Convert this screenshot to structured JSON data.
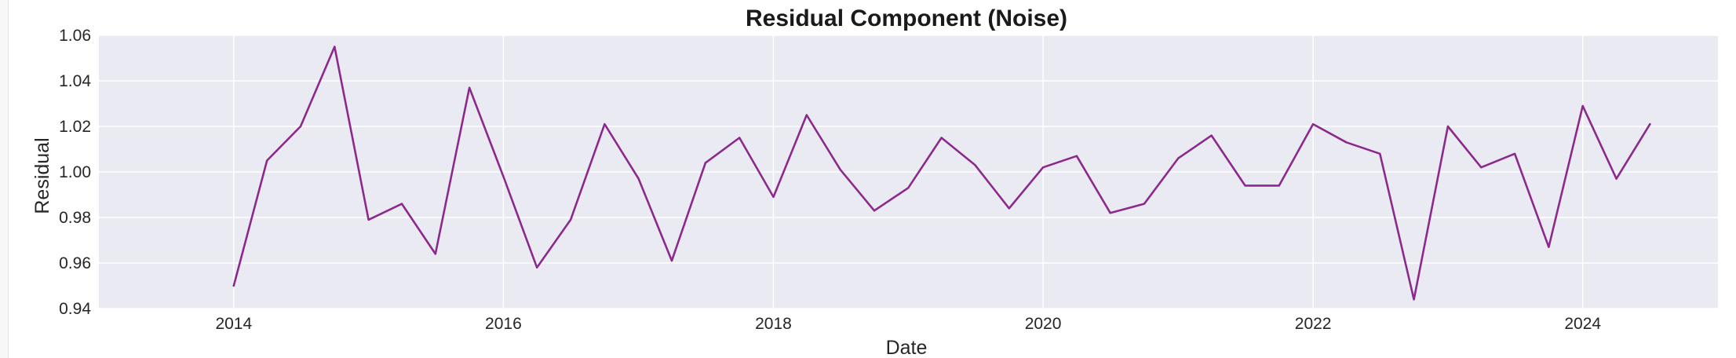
{
  "chart_data": {
    "type": "line",
    "title": "Residual Component (Noise)",
    "xlabel": "Date",
    "ylabel": "Residual",
    "x_axis": "date",
    "xlim": [
      "2013-01-01",
      "2025-01-01"
    ],
    "ylim": [
      0.94,
      1.06
    ],
    "x_ticks": [
      "2014",
      "2016",
      "2018",
      "2020",
      "2022",
      "2024"
    ],
    "y_ticks": [
      "0.94",
      "0.96",
      "0.98",
      "1.00",
      "1.02",
      "1.04",
      "1.06"
    ],
    "grid": true,
    "colors": {
      "line": "#8b2a8c",
      "plot_background": "#eaeaf2",
      "grid": "#ffffff"
    },
    "series": [
      {
        "x": [
          "2014-01-01",
          "2014-04-01",
          "2014-07-01",
          "2014-10-01",
          "2015-01-01",
          "2015-04-01",
          "2015-07-01",
          "2015-10-01",
          "2016-01-01",
          "2016-04-01",
          "2016-07-01",
          "2016-10-01",
          "2017-01-01",
          "2017-04-01",
          "2017-07-01",
          "2017-10-01",
          "2018-01-01",
          "2018-04-01",
          "2018-07-01",
          "2018-10-01",
          "2019-01-01",
          "2019-04-01",
          "2019-07-01",
          "2019-10-01",
          "2020-01-01",
          "2020-04-01",
          "2020-07-01",
          "2020-10-01",
          "2021-01-01",
          "2021-04-01",
          "2021-07-01",
          "2021-10-01",
          "2022-01-01",
          "2022-04-01",
          "2022-07-01",
          "2022-10-01",
          "2023-01-01",
          "2023-04-01",
          "2023-07-01",
          "2023-10-01",
          "2024-01-01",
          "2024-04-01",
          "2024-07-01"
        ],
        "values": [
          0.95,
          1.005,
          1.02,
          1.055,
          0.979,
          0.986,
          0.964,
          1.037,
          0.998,
          0.958,
          0.979,
          1.021,
          0.997,
          0.961,
          1.004,
          1.015,
          0.989,
          1.025,
          1.001,
          0.983,
          0.993,
          1.015,
          1.003,
          0.984,
          1.002,
          1.007,
          0.982,
          0.986,
          1.006,
          1.016,
          0.994,
          0.994,
          1.021,
          1.013,
          1.008,
          0.944,
          1.02,
          1.002,
          1.008,
          0.967,
          1.029,
          0.997,
          1.021
        ]
      }
    ]
  }
}
